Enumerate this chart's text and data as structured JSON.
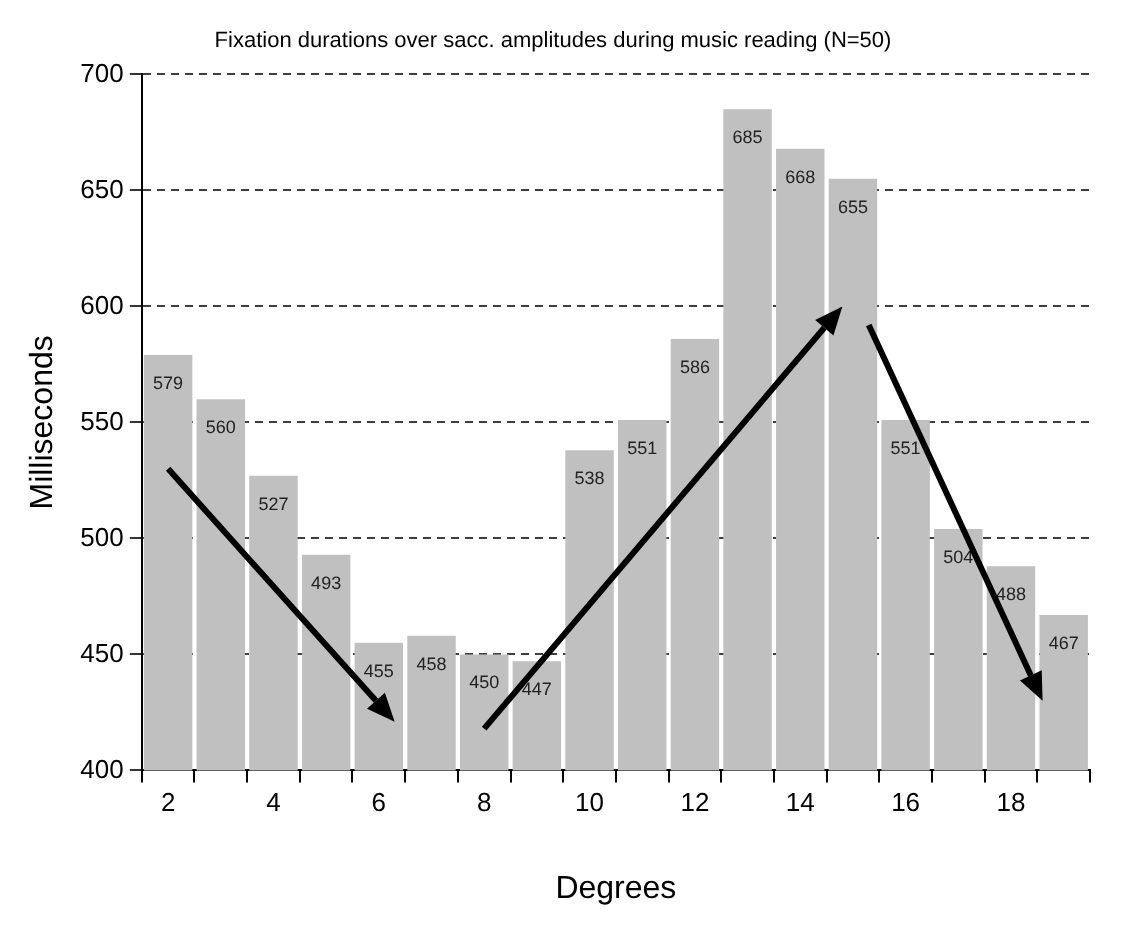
{
  "chart_data": {
    "type": "bar",
    "title": "Fixation durations over sacc. amplitudes during music reading (N=50)",
    "xlabel": "Degrees",
    "ylabel": "Milliseconds",
    "categories": [
      "2",
      null,
      "4",
      null,
      "6",
      null,
      "8",
      null,
      "10",
      null,
      "12",
      null,
      "14",
      null,
      "16",
      null,
      "18",
      null
    ],
    "values": [
      579,
      560,
      527,
      493,
      455,
      458,
      450,
      447,
      538,
      551,
      586,
      685,
      668,
      655,
      551,
      504,
      488,
      467
    ],
    "color": "#c0c0c0",
    "ylim": [
      400,
      700
    ],
    "yticks": [
      400,
      450,
      500,
      550,
      600,
      650,
      700
    ],
    "grid": "y",
    "data_labels": true
  }
}
